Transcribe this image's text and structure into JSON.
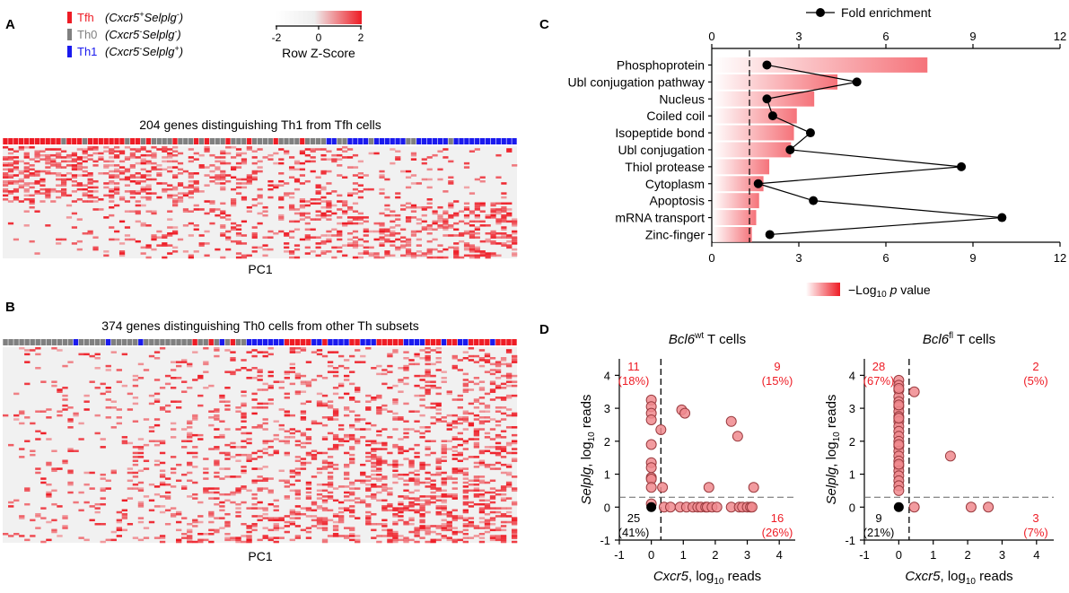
{
  "panel_labels": {
    "a": "A",
    "b": "B",
    "c": "C",
    "d": "D"
  },
  "legend": {
    "entries": [
      {
        "name": "Tfh",
        "desc_pre": "(Cxcr5",
        "sup1": "+",
        "mid": "Selplg",
        "sup2": "-",
        "post": ")",
        "color": "#ee1c25"
      },
      {
        "name": "Th0",
        "desc_pre": "(Cxcr5",
        "sup1": "-",
        "mid": "Selplg",
        "sup2": "-",
        "post": ")",
        "color": "#808080"
      },
      {
        "name": "Th1",
        "desc_pre": "(Cxcr5",
        "sup1": "-",
        "mid": "Selplg",
        "sup2": "+",
        "post": ")",
        "color": "#1a1aee"
      }
    ],
    "colorbar_ticks": [
      "-2",
      "0",
      "2"
    ],
    "colorbar_label": "Row Z-Score",
    "color_low": "#f4f4f4",
    "color_high": "#ee1c25"
  },
  "heatmap_a": {
    "title": "204 genes distinguishing Th1 from Tfh cells",
    "xlabel": "PC1",
    "header": "RRRRRRRRRRRGRRRGRRRRRRRGRRGRGGGGRGGGRGRGGGRGGGRGGGGRGGGGRGGGGBBGGBBBBGBBBBBBGGBBBBBBGBBBBBBBBBBBB"
  },
  "heatmap_b": {
    "title": "374 genes distinguishing Th0 cells from other Th subsets",
    "xlabel": "PC1",
    "header": "GGGGGGGGGGGGGBGGGGGBGGGGGBGGGGGGGGGRGGRGBGRGGBBBBBBBRRRRRBBRBBBBRRBBBRRRRRBBBBRRRBRRBBRRRRBRRRR"
  },
  "chart_data": [
    {
      "type": "bar",
      "panel": "C",
      "categories": [
        "Phosphoprotein",
        "Ubl conjugation pathway",
        "Nucleus",
        "Coiled coil",
        "Isopeptide bond",
        "Ubl conjugation",
        "Thiol protease",
        "Cytoplasm",
        "Apoptosis",
        "mRNA transport",
        "Zinc-finger"
      ],
      "series": [
        {
          "name": "-Log10 p value",
          "values": [
            7.4,
            4.3,
            3.5,
            2.9,
            2.8,
            2.7,
            1.95,
            1.75,
            1.6,
            1.5,
            1.35
          ]
        },
        {
          "name": "Fold enrichment",
          "values": [
            1.9,
            5.0,
            1.9,
            2.1,
            3.4,
            2.7,
            8.6,
            1.6,
            3.5,
            10.0,
            2.0
          ]
        }
      ],
      "xlim": [
        0,
        12
      ],
      "xticks": [
        "0",
        "3",
        "6",
        "9",
        "12"
      ],
      "significance_line": 1.3,
      "top_axis_label": "Fold enrichment",
      "bottom_axis_label_pre": "−Log",
      "bottom_axis_label_sub": "10",
      "bottom_axis_label_p": "p",
      "bottom_axis_label_post": " value"
    },
    {
      "type": "scatter",
      "panel": "D",
      "title_gene": "Bcl6",
      "title_sup": "wt",
      "title_rest": " T cells",
      "xlabel_gene": "Cxcr5",
      "xlabel_rest": ", log",
      "xlabel_sub": "10",
      "xlabel_end": " reads",
      "ylabel_gene": "Selplg",
      "ylabel_rest": ", log",
      "ylabel_sub": "10",
      "ylabel_end": " reads",
      "xlim": [
        -1,
        4.5
      ],
      "ylim": [
        -1,
        4.5
      ],
      "xticks": [
        "-1",
        "0",
        "1",
        "2",
        "3",
        "4"
      ],
      "yticks": [
        "-1",
        "0",
        "1",
        "2",
        "3",
        "4"
      ],
      "threshold_x": 0.3,
      "threshold_y": 0.3,
      "quadrants": {
        "top_left": {
          "count": "11",
          "pct": "(18%)"
        },
        "top_right": {
          "count": "9",
          "pct": "(15%)"
        },
        "bottom_left": {
          "count": "25",
          "pct": "(41%)"
        },
        "bottom_right": {
          "count": "16",
          "pct": "(26%)"
        }
      },
      "x": [
        0,
        0,
        0,
        0,
        0,
        0,
        0,
        0,
        0,
        0,
        0,
        0.3,
        0.35,
        0.95,
        1.05,
        2.5,
        2.7,
        1.8,
        3.2,
        0.4,
        0.6,
        0.9,
        1.1,
        1.3,
        1.45,
        1.55,
        1.7,
        1.75,
        1.9,
        2.05,
        2.5,
        2.75,
        2.85,
        3.0,
        3.1,
        3.15
      ],
      "y": [
        3.25,
        3.05,
        2.85,
        2.65,
        1.9,
        1.35,
        1.2,
        0.9,
        0.85,
        0.6,
        0.1,
        2.35,
        0.6,
        2.95,
        2.85,
        2.6,
        2.15,
        0.6,
        0.6,
        0,
        0,
        0,
        0,
        0,
        0,
        0,
        0,
        0,
        0,
        0,
        0,
        0,
        0,
        0,
        0,
        0
      ],
      "double_negative": {
        "x": 0,
        "y": 0
      }
    },
    {
      "type": "scatter",
      "panel": "D",
      "title_gene": "Bcl6",
      "title_sup": "fl",
      "title_rest": " T cells",
      "xlabel_gene": "Cxcr5",
      "xlabel_rest": ", log",
      "xlabel_sub": "10",
      "xlabel_end": " reads",
      "ylabel_gene": "Selplg",
      "ylabel_rest": ", log",
      "ylabel_sub": "10",
      "ylabel_end": " reads",
      "xlim": [
        -1,
        4.5
      ],
      "ylim": [
        -1,
        4.5
      ],
      "xticks": [
        "-1",
        "0",
        "1",
        "2",
        "3",
        "4"
      ],
      "yticks": [
        "-1",
        "0",
        "1",
        "2",
        "3",
        "4"
      ],
      "threshold_x": 0.3,
      "threshold_y": 0.3,
      "quadrants": {
        "top_left": {
          "count": "28",
          "pct": "(67%)"
        },
        "top_right": {
          "count": "2",
          "pct": "(5%)"
        },
        "bottom_left": {
          "count": "9",
          "pct": "(21%)"
        },
        "bottom_right": {
          "count": "3",
          "pct": "(7%)"
        }
      },
      "x": [
        0,
        0,
        0,
        0,
        0,
        0,
        0,
        0,
        0,
        0,
        0,
        0,
        0,
        0,
        0,
        0,
        0,
        0,
        0,
        0,
        0,
        0,
        0,
        0,
        0,
        0,
        0,
        0,
        0.45,
        1.5,
        0.45,
        2.1,
        2.6
      ],
      "y": [
        3.85,
        3.7,
        3.55,
        3.35,
        3.2,
        3.05,
        2.9,
        2.75,
        2.6,
        2.45,
        2.3,
        2.15,
        2.0,
        1.85,
        1.7,
        1.55,
        1.4,
        1.25,
        1.1,
        0.95,
        0.8,
        0.65,
        0.5,
        3.6,
        3.1,
        2.7,
        1.9,
        1.3,
        3.5,
        1.55,
        0,
        0,
        0
      ],
      "double_negative": {
        "x": 0,
        "y": 0
      }
    }
  ]
}
